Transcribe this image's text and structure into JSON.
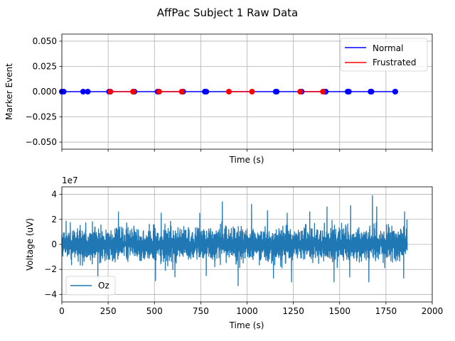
{
  "figure_title": "AffPac Subject 1 Raw Data",
  "chart_data": [
    {
      "type": "line",
      "panel": "top",
      "title": "",
      "xlabel": "Time (s)",
      "ylabel": "Marker Event",
      "xlim": [
        0,
        2000
      ],
      "ylim": [
        -0.057,
        0.057
      ],
      "xticks": [
        0,
        250,
        500,
        750,
        1000,
        1250,
        1500,
        1750,
        2000
      ],
      "xtick_labels_visible": false,
      "yticks": [
        -0.05,
        -0.025,
        0.0,
        0.025,
        0.05
      ],
      "ytick_labels": [
        "−0.050",
        "−0.025",
        "0.000",
        "0.025",
        "0.050"
      ],
      "grid": true,
      "legend_location": "top-right",
      "series": [
        {
          "name": "Normal",
          "color": "#0000ff",
          "marker": "circle",
          "segments": [
            [
              0,
              10
            ],
            [
              115,
              140
            ],
            [
              255,
              262
            ],
            [
              385,
              392
            ],
            [
              517,
              525
            ],
            [
              648,
              655
            ],
            [
              772,
              780
            ],
            [
              1155,
              1160
            ],
            [
              1290,
              1295
            ],
            [
              1420,
              1425
            ],
            [
              1543,
              1550
            ],
            [
              1667,
              1672
            ],
            [
              1800,
              1800
            ]
          ],
          "y": 0
        },
        {
          "name": "Frustrated",
          "color": "#ff0000",
          "marker": "circle",
          "segments": [
            [
              262,
              385
            ],
            [
              525,
              648
            ],
            [
              902,
              1027
            ],
            [
              1287,
              1410
            ]
          ],
          "y": 0
        }
      ],
      "normal_line": [
        0,
        1800
      ]
    },
    {
      "type": "line",
      "panel": "bottom",
      "title": "",
      "xlabel": "Time (s)",
      "ylabel": "Voltage (uV)",
      "offset_label": "1e7",
      "xlim": [
        0,
        2000
      ],
      "ylim": [
        -4.6,
        4.6
      ],
      "xticks": [
        0,
        250,
        500,
        750,
        1000,
        1250,
        1500,
        1750,
        2000
      ],
      "xtick_labels": [
        "0",
        "250",
        "500",
        "750",
        "1000",
        "1250",
        "1500",
        "1750",
        "2000"
      ],
      "yticks": [
        -4,
        -2,
        0,
        2,
        4
      ],
      "ytick_labels": [
        "−4",
        "−2",
        "0",
        "2",
        "4"
      ],
      "grid": true,
      "legend_location": "bottom-left",
      "series": [
        {
          "name": "Oz",
          "color": "#1f77b4",
          "x_range": [
            0,
            1865
          ],
          "typical_amplitude": 1.7,
          "peak_max": 3.9,
          "peak_min": -3.3,
          "peaks": [
            {
              "x": 1677,
              "y": 3.9
            },
            {
              "x": 866,
              "y": 3.4
            },
            {
              "x": 1025,
              "y": 3.2
            },
            {
              "x": 1432,
              "y": 3.0
            },
            {
              "x": 1560,
              "y": 3.1
            },
            {
              "x": 1700,
              "y": 3.0
            },
            {
              "x": 305,
              "y": 2.6
            },
            {
              "x": 537,
              "y": 2.5
            },
            {
              "x": 745,
              "y": 2.5
            },
            {
              "x": 1216,
              "y": 2.5
            },
            {
              "x": 1850,
              "y": 2.6
            },
            {
              "x": 1110,
              "y": 2.7
            },
            {
              "x": 1338,
              "y": 2.6
            },
            {
              "x": 952,
              "y": -3.3
            },
            {
              "x": 1240,
              "y": -3.0
            },
            {
              "x": 1470,
              "y": -3.0
            },
            {
              "x": 1657,
              "y": -3.0
            },
            {
              "x": 505,
              "y": -2.9
            },
            {
              "x": 195,
              "y": -2.7
            },
            {
              "x": 1142,
              "y": -2.7
            },
            {
              "x": 1845,
              "y": -2.7
            },
            {
              "x": 610,
              "y": -2.6
            },
            {
              "x": 780,
              "y": -2.5
            },
            {
              "x": 1555,
              "y": -2.6
            }
          ]
        }
      ]
    }
  ]
}
